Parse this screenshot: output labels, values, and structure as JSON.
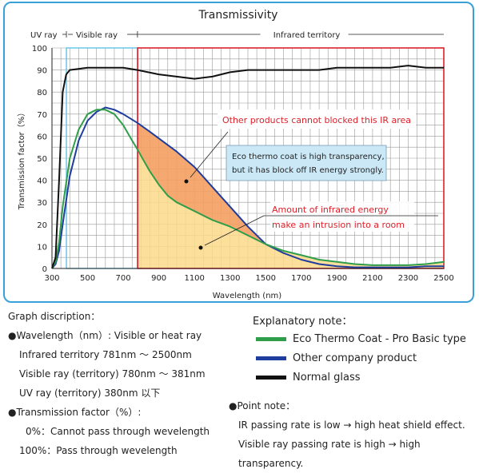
{
  "chart_data": {
    "type": "line",
    "title": "Transmissivity",
    "xlabel": "Wavelength (nm)",
    "ylabel": "Transmission factor（%）",
    "xlim": [
      300,
      2500
    ],
    "ylim": [
      0,
      100
    ],
    "xticks": [
      "300",
      "500",
      "700",
      "900",
      "1100",
      "1300",
      "1500",
      "1700",
      "1900",
      "2100",
      "2300",
      "2500"
    ],
    "yticks": [
      "0",
      "10",
      "20",
      "30",
      "40",
      "50",
      "60",
      "70",
      "80",
      "90",
      "100"
    ],
    "grid": true,
    "regions": [
      {
        "label": "UV ray",
        "from": 300,
        "to": 381
      },
      {
        "label": "Visible ray",
        "from": 381,
        "to": 780
      },
      {
        "label": "Infrared territory",
        "from": 781,
        "to": 2500
      }
    ],
    "series": [
      {
        "name": "Normal glass",
        "color": "#111111",
        "x": [
          300,
          320,
          340,
          360,
          380,
          400,
          500,
          600,
          700,
          780,
          900,
          1000,
          1100,
          1200,
          1300,
          1400,
          1500,
          1600,
          1700,
          1800,
          1900,
          2000,
          2100,
          2200,
          2300,
          2400,
          2500
        ],
        "y": [
          0,
          5,
          40,
          80,
          88,
          90,
          91,
          91,
          91,
          90,
          88,
          87,
          86,
          87,
          89,
          90,
          90,
          90,
          90,
          90,
          91,
          91,
          91,
          91,
          92,
          91,
          91
        ]
      },
      {
        "name": "Other company product",
        "color": "#1f3d9e",
        "x": [
          300,
          320,
          340,
          360,
          400,
          450,
          500,
          550,
          600,
          650,
          700,
          780,
          850,
          900,
          1000,
          1100,
          1200,
          1300,
          1400,
          1500,
          1600,
          1700,
          1800,
          1900,
          2000,
          2100,
          2200,
          2300,
          2400,
          2500
        ],
        "y": [
          0,
          2,
          8,
          20,
          42,
          58,
          67,
          71,
          73,
          72,
          70,
          66,
          62,
          59,
          53,
          46,
          37,
          28,
          19,
          11,
          7,
          4,
          2,
          1,
          0.5,
          0.5,
          0.5,
          0.5,
          1,
          1
        ]
      },
      {
        "name": "Eco Thermo Coat - Pro Basic type",
        "color": "#2f9e4a",
        "x": [
          300,
          320,
          340,
          360,
          400,
          450,
          500,
          550,
          600,
          650,
          700,
          750,
          780,
          800,
          850,
          900,
          950,
          1000,
          1100,
          1200,
          1300,
          1400,
          1500,
          1600,
          1700,
          1800,
          1900,
          2000,
          2100,
          2200,
          2300,
          2400,
          2500
        ],
        "y": [
          0,
          3,
          12,
          28,
          50,
          63,
          70,
          72,
          72,
          70,
          65,
          58,
          54,
          51,
          44,
          38,
          33,
          30,
          26,
          22,
          19,
          15,
          11,
          8,
          6,
          4,
          3,
          2,
          1.5,
          1.5,
          1.5,
          2,
          3
        ]
      }
    ],
    "annotations": [
      "Other products cannot blocked this IR area",
      "Eco thermo coat is high transparency,",
      "but it has block off IR energy strongly.",
      "Amount of infrared energy",
      "make an intrusion into a room"
    ],
    "colors": {
      "ir_box": "#e0202a",
      "visible_box": "#5fc3e8",
      "orange_fill": "#f4a060",
      "yellow_fill": "#fbd98a",
      "callout_bg": "#cbe8f7",
      "frame": "#3aa0d8"
    }
  },
  "graph_description": {
    "heading": "Graph discription：",
    "wavelength_title": "●Wavelength（nm）: Visible or heat ray",
    "wavelength_lines": [
      "Infrared territory 781nm ～ 2500nm",
      "Visible ray (territory) 780nm ～ 381nm",
      "UV ray (territory) 380nm 以下"
    ],
    "transmission_title": "●Transmission factor（%）:",
    "transmission_lines": [
      "0%：Cannot pass through wevelength",
      "100%：Pass through wevelength"
    ]
  },
  "explanatory_note": {
    "heading": "Explanatory note：",
    "items": [
      "Eco Thermo Coat - Pro Basic type",
      "Other company product",
      "Normal glass"
    ]
  },
  "point_note": {
    "heading": "●Point note：",
    "lines": [
      "IR passing rate is low → high heat shield effect.",
      "Visible ray passing rate is high → high transparency."
    ]
  }
}
